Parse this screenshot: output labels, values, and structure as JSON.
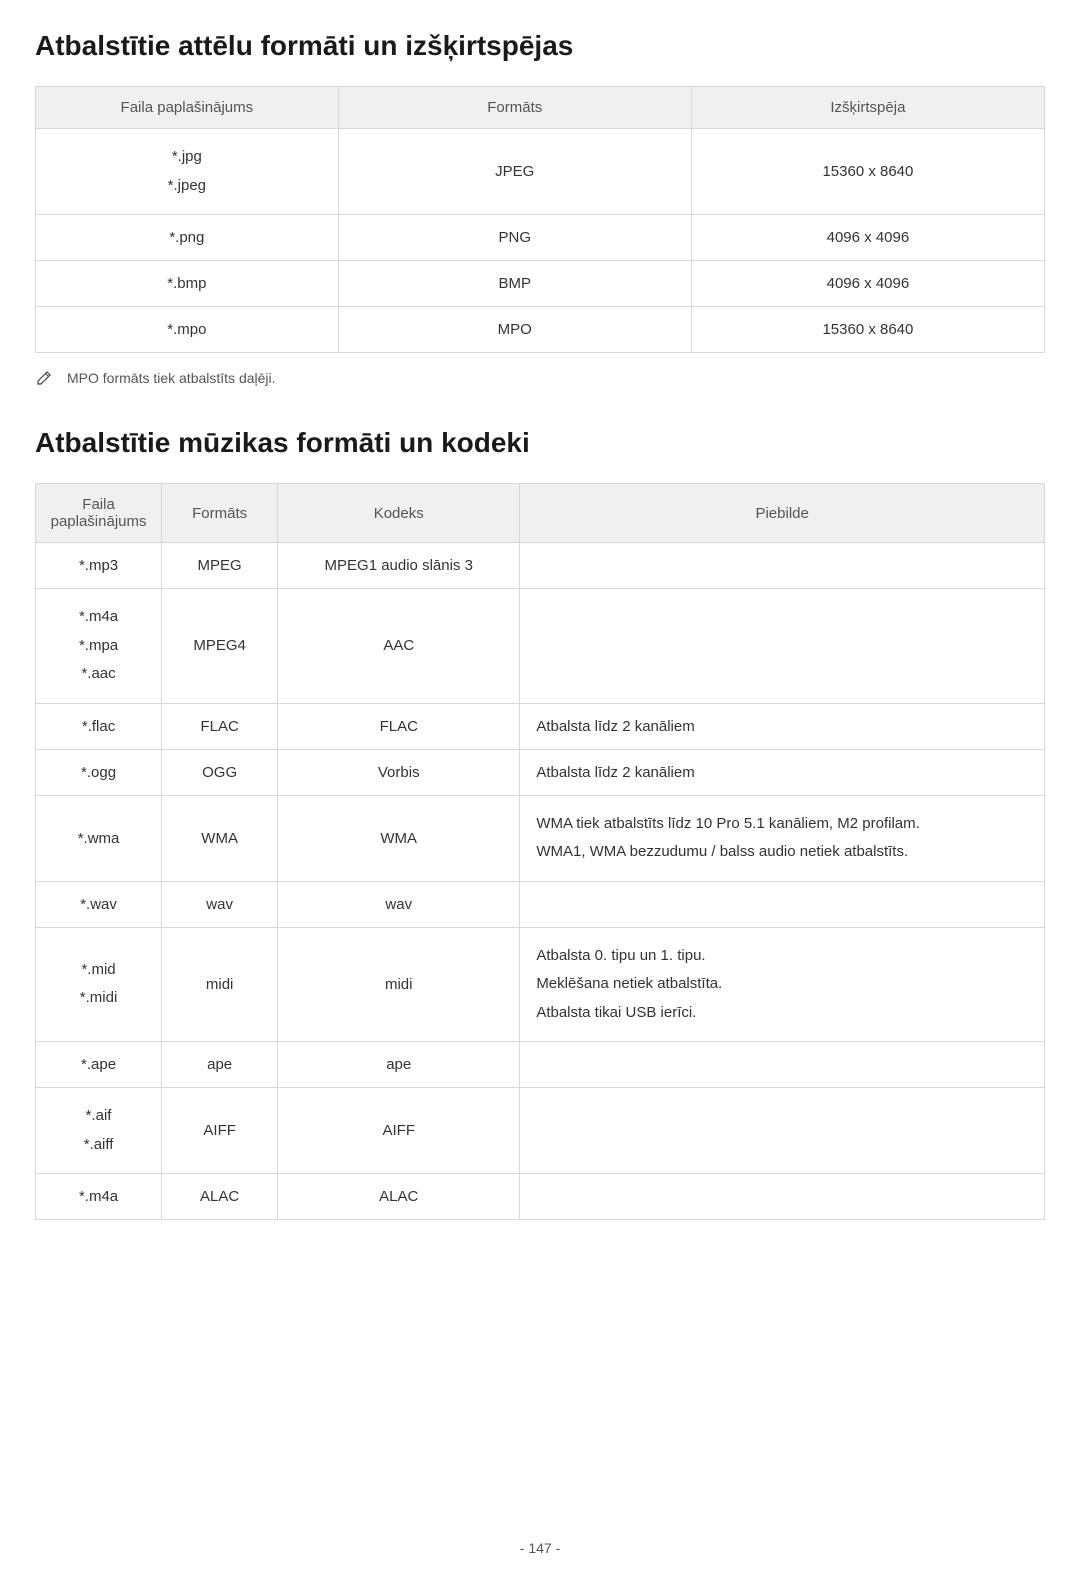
{
  "section1": {
    "title": "Atbalstītie attēlu formāti un izšķirtspējas",
    "headers": [
      "Faila paplašinājums",
      "Formāts",
      "Izšķirtspēja"
    ],
    "rows": [
      {
        "ext": "*.jpg\n*.jpeg",
        "format": "JPEG",
        "res": "15360 x 8640"
      },
      {
        "ext": "*.png",
        "format": "PNG",
        "res": "4096 x 4096"
      },
      {
        "ext": "*.bmp",
        "format": "BMP",
        "res": "4096 x 4096"
      },
      {
        "ext": "*.mpo",
        "format": "MPO",
        "res": "15360 x 8640"
      }
    ],
    "note": "MPO formāts tiek atbalstīts daļēji."
  },
  "section2": {
    "title": "Atbalstītie mūzikas formāti un kodeki",
    "headers": [
      "Faila paplašinājums",
      "Formāts",
      "Kodeks",
      "Piebilde"
    ],
    "rows": [
      {
        "ext": "*.mp3",
        "format": "MPEG",
        "codec": "MPEG1 audio slānis 3",
        "note": ""
      },
      {
        "ext": "*.m4a\n*.mpa\n*.aac",
        "format": "MPEG4",
        "codec": "AAC",
        "note": ""
      },
      {
        "ext": "*.flac",
        "format": "FLAC",
        "codec": "FLAC",
        "note": "Atbalsta līdz 2 kanāliem"
      },
      {
        "ext": "*.ogg",
        "format": "OGG",
        "codec": "Vorbis",
        "note": "Atbalsta līdz 2 kanāliem"
      },
      {
        "ext": "*.wma",
        "format": "WMA",
        "codec": "WMA",
        "note": "WMA tiek atbalstīts līdz 10 Pro 5.1 kanāliem, M2 profilam.\nWMA1, WMA bezzudumu / balss audio netiek atbalstīts."
      },
      {
        "ext": "*.wav",
        "format": "wav",
        "codec": "wav",
        "note": ""
      },
      {
        "ext": "*.mid\n*.midi",
        "format": "midi",
        "codec": "midi",
        "note": "Atbalsta 0. tipu un 1. tipu.\nMeklēšana netiek atbalstīta.\nAtbalsta tikai USB ierīci."
      },
      {
        "ext": "*.ape",
        "format": "ape",
        "codec": "ape",
        "note": ""
      },
      {
        "ext": "*.aif\n*.aiff",
        "format": "AIFF",
        "codec": "AIFF",
        "note": ""
      },
      {
        "ext": "*.m4a",
        "format": "ALAC",
        "codec": "ALAC",
        "note": ""
      }
    ]
  },
  "page": "- 147 -"
}
